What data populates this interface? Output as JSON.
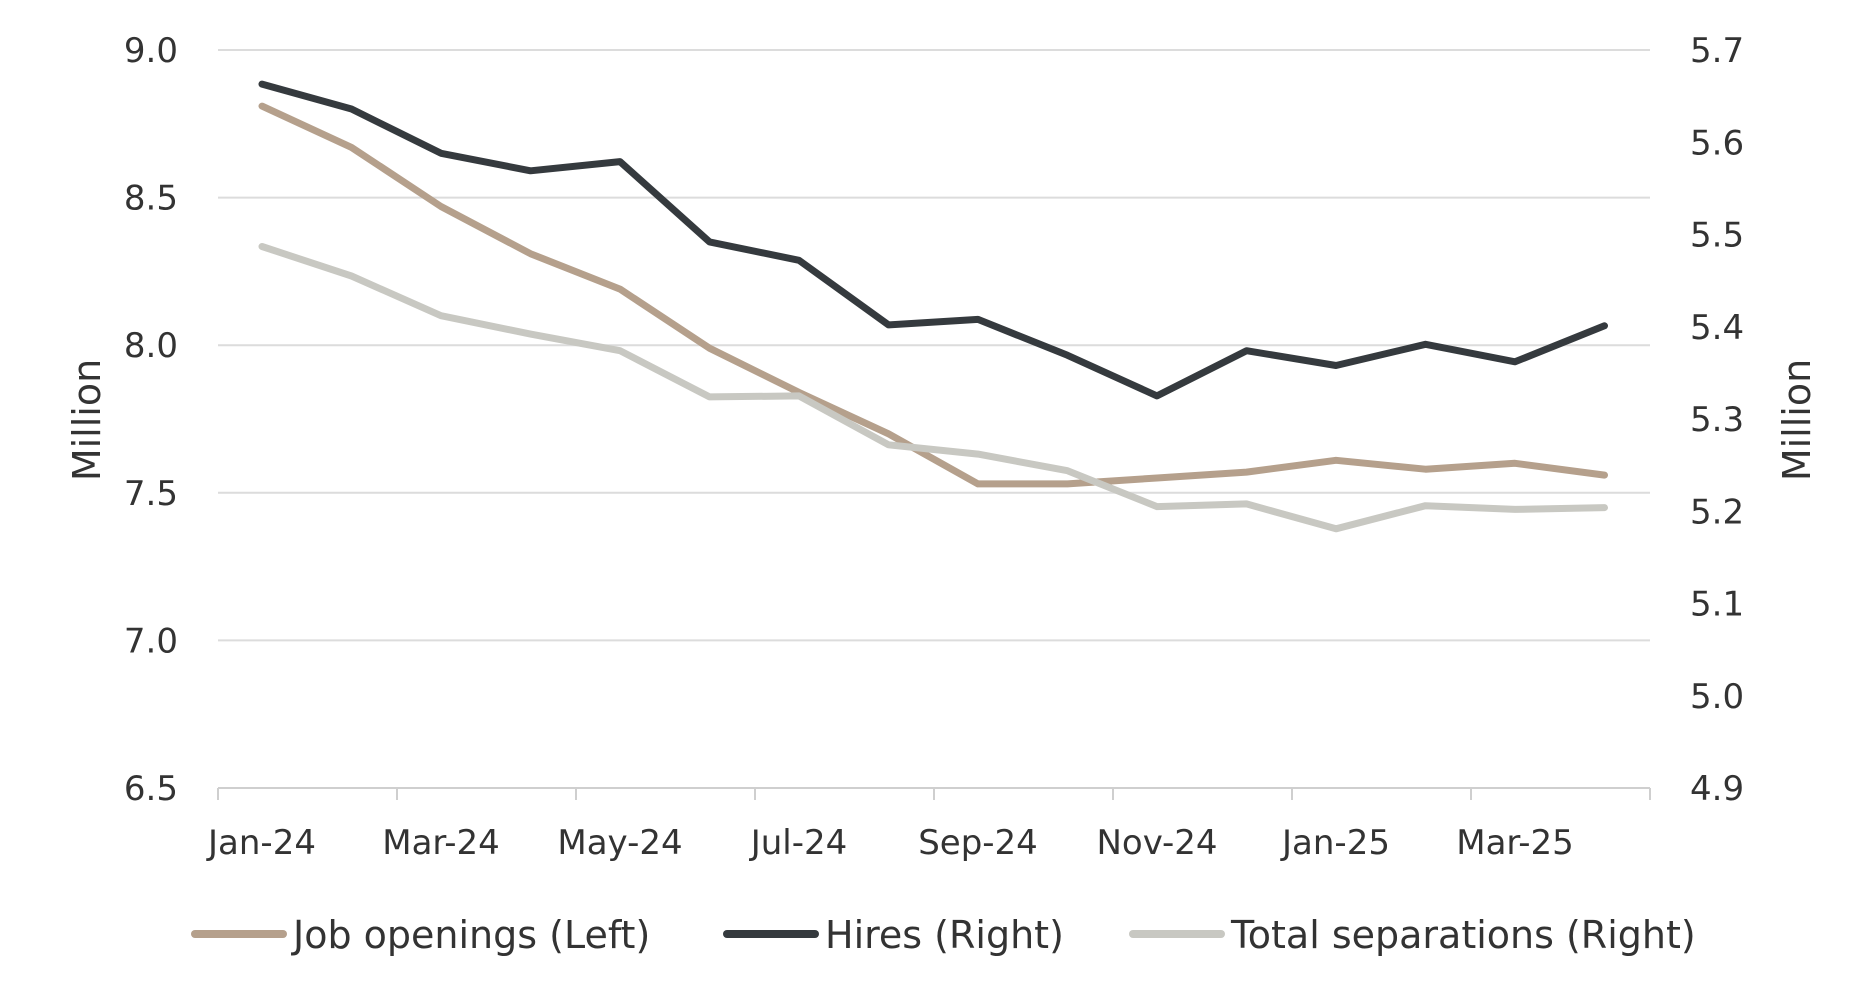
{
  "chart_data": {
    "type": "line",
    "categories": [
      "Jan-24",
      "Feb-24",
      "Mar-24",
      "Apr-24",
      "May-24",
      "Jun-24",
      "Jul-24",
      "Aug-24",
      "Sep-24",
      "Oct-24",
      "Nov-24",
      "Dec-24",
      "Jan-25",
      "Feb-25",
      "Mar-25",
      "Apr-25"
    ],
    "x_tick_labels": [
      "Jan-24",
      "Mar-24",
      "May-24",
      "Jul-24",
      "Sep-24",
      "Nov-24",
      "Jan-25",
      "Mar-25"
    ],
    "y_left": {
      "label": "Million",
      "ylim": [
        6.5,
        9.0
      ],
      "ticks": [
        "6.5",
        "7.0",
        "7.5",
        "8.0",
        "8.5",
        "9.0"
      ]
    },
    "y_right": {
      "label": "Million",
      "ylim": [
        4.9,
        5.7
      ],
      "ticks": [
        "4.9",
        "5.0",
        "5.1",
        "5.2",
        "5.3",
        "5.4",
        "5.5",
        "5.6",
        "5.7"
      ]
    },
    "grid": true,
    "legend_position": "bottom",
    "series": [
      {
        "name": "Job openings (Left)",
        "axis": "left",
        "color": "#b5a08c",
        "values": [
          8.81,
          8.67,
          8.47,
          8.31,
          8.19,
          7.99,
          7.84,
          7.7,
          7.53,
          7.53,
          7.55,
          7.57,
          7.61,
          7.58,
          7.6,
          7.56
        ]
      },
      {
        "name": "Hires (Right)",
        "axis": "right",
        "color": "#353a3e",
        "values": [
          5.663,
          5.636,
          5.588,
          5.569,
          5.579,
          5.492,
          5.472,
          5.402,
          5.408,
          5.369,
          5.325,
          5.374,
          5.358,
          5.381,
          5.362,
          5.401
        ]
      },
      {
        "name": "Total separations (Right)",
        "axis": "right",
        "color": "#c8c8c2",
        "values": [
          5.487,
          5.455,
          5.412,
          5.392,
          5.374,
          5.324,
          5.325,
          5.272,
          5.262,
          5.244,
          5.205,
          5.208,
          5.181,
          5.206,
          5.202,
          5.204
        ]
      }
    ]
  }
}
